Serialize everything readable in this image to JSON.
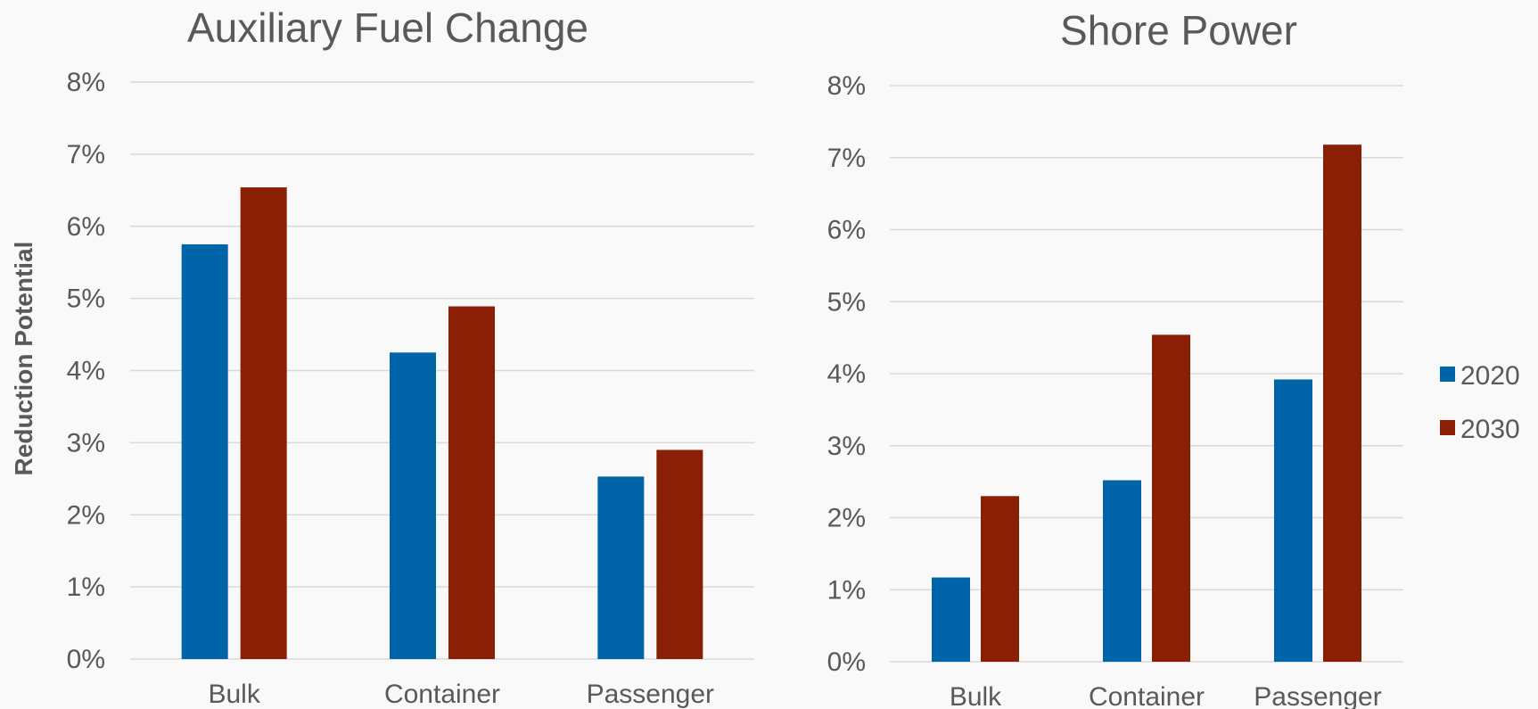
{
  "shared": {
    "ylabel": "Reduction Potential",
    "categories": [
      "Bulk",
      "Container",
      "Passenger"
    ],
    "colors": {
      "2020": "#0065a8",
      "2030": "#8b1f05",
      "text": "#595959",
      "grid": "#d9d9d9",
      "background": "#f9f9f9"
    }
  },
  "legend": {
    "position": "right",
    "items": [
      {
        "label": "2020",
        "color": "#0065a8"
      },
      {
        "label": "2030",
        "color": "#8b1f05"
      }
    ]
  },
  "chart_data": [
    {
      "type": "bar",
      "title": "Auxiliary Fuel Change",
      "ylabel": "Reduction Potential",
      "xlabel": "",
      "categories": [
        "Bulk",
        "Container",
        "Passenger"
      ],
      "ylim": [
        0,
        0.08
      ],
      "yticks": [
        "0%",
        "1%",
        "2%",
        "3%",
        "4%",
        "5%",
        "6%",
        "7%",
        "8%"
      ],
      "grid": true,
      "series": [
        {
          "name": "2020",
          "color": "#0065a8",
          "values": [
            0.0575,
            0.0425,
            0.0253
          ]
        },
        {
          "name": "2030",
          "color": "#8b1f05",
          "values": [
            0.0654,
            0.0489,
            0.029
          ]
        }
      ]
    },
    {
      "type": "bar",
      "title": "Shore Power",
      "xlabel": "",
      "categories": [
        "Bulk",
        "Container",
        "Passenger"
      ],
      "ylim": [
        0,
        0.08
      ],
      "yticks": [
        "0%",
        "1%",
        "2%",
        "3%",
        "4%",
        "5%",
        "6%",
        "7%",
        "8%"
      ],
      "grid": true,
      "series": [
        {
          "name": "2020",
          "color": "#0065a8",
          "values": [
            0.0117,
            0.0252,
            0.0392
          ]
        },
        {
          "name": "2030",
          "color": "#8b1f05",
          "values": [
            0.023,
            0.0454,
            0.0718
          ]
        }
      ]
    }
  ]
}
